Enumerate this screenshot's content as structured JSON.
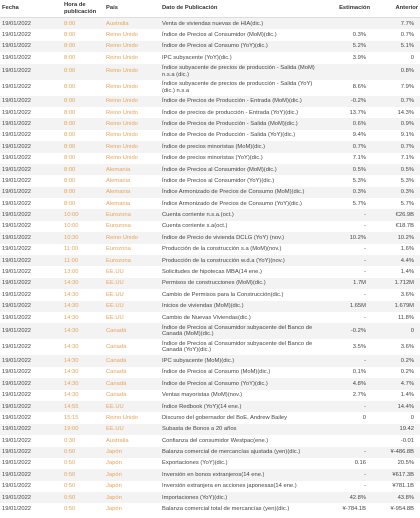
{
  "table": {
    "columns": [
      "Fecha",
      "Hora de publicación",
      "País",
      "Dato de Publicación",
      "Estimación",
      "Anterior"
    ],
    "rows": [
      [
        "19/01/2022",
        "8:00",
        "Australia",
        "Venta de viviendas nuevas de HIA(dic.)",
        null,
        "7.7%"
      ],
      [
        "19/01/2022",
        "8:00",
        "Reino Unido",
        "Índice de Precios al Consumidor (MoM)(dic.)",
        "0.3%",
        "0.7%"
      ],
      [
        "19/01/2022",
        "8:00",
        "Reino Unido",
        "Índice de Precios al Consumo (YoY)(dic.)",
        "5.2%",
        "5.1%"
      ],
      [
        "19/01/2022",
        "8:00",
        "Reino Unido",
        "IPC subyacente (YoY)(dic.)",
        "3.9%",
        "0"
      ],
      [
        "19/01/2022",
        "8:00",
        "Reino Unido",
        "Índice subyacente de precios de producción - Salida (MoM) n.s.a (dic.)",
        null,
        "0.8%"
      ],
      [
        "19/01/2022",
        "8:00",
        "Reino Unido",
        "Índice subyacente de precios de producción - Salida (YoY) (dic.) n.s.a",
        "8.6%",
        "7.9%"
      ],
      [
        "19/01/2022",
        "8:00",
        "Reino Unido",
        "Índice de Precios de Producción - Entrada (MoM)(dic.)",
        "-0.2%",
        "0.7%"
      ],
      [
        "19/01/2022",
        "8:00",
        "Reino Unido",
        "Índice de precios de producción - Entrada (YoY)(dic.)",
        "13.7%",
        "14.3%"
      ],
      [
        "19/01/2022",
        "8:00",
        "Reino Unido",
        "Índice de Precios de Producción - Salida (MoM)(dic.)",
        "0.6%",
        "0.9%"
      ],
      [
        "19/01/2022",
        "8:00",
        "Reino Unido",
        "Índice de Precios de Producción - Salida (YoY)(dic.)",
        "9.4%",
        "9.1%"
      ],
      [
        "19/01/2022",
        "8:00",
        "Reino Unido",
        "Índice de precios minoristas (MoM)(dic.)",
        "0.7%",
        "0.7%"
      ],
      [
        "19/01/2022",
        "8:00",
        "Reino Unido",
        "Índice de precios minoristas (YoY)(dic.)",
        "7.1%",
        "7.1%"
      ],
      [
        "19/01/2022",
        "8:00",
        "Alemania",
        "Índice de Precios al Consumidor (MoM)(dic.)",
        "0.5%",
        "0.5%"
      ],
      [
        "19/01/2022",
        "8:00",
        "Alemania",
        "Índice de Precios al Consumidor (YoY)(dic.)",
        "5.3%",
        "5.3%"
      ],
      [
        "19/01/2022",
        "8:00",
        "Alemania",
        "Índice Armonizado de Precios de Consumo (MoM)(dic.)",
        "0.3%",
        "0.3%"
      ],
      [
        "19/01/2022",
        "8:00",
        "Alemania",
        "Índice Armonizado de Precios de Consumo (YoY)(dic.)",
        "5.7%",
        "5.7%"
      ],
      [
        "19/01/2022",
        "10:00",
        "Eurozona",
        "Cuenta corriente n.s.a.(oct.)",
        "-",
        "€26.9B"
      ],
      [
        "19/01/2022",
        "10:00",
        "Eurozona",
        "Cuenta corriente s.a(oct.)",
        "-",
        "€18.7B"
      ],
      [
        "19/01/2022",
        "10:30",
        "Reino Unido",
        "Índice de Precio de vivienda DCLG (YoY) (nov.)",
        "10.2%",
        "10.2%"
      ],
      [
        "19/01/2022",
        "11:00",
        "Eurozona",
        "Producción de la construcción s.a (MoM)(nov.)",
        "-",
        "1.6%"
      ],
      [
        "19/01/2022",
        "11:00",
        "Eurozona",
        "Producción de la construcción w.d.a (YoY)(nov.)",
        "-",
        "4.4%"
      ],
      [
        "19/01/2022",
        "13:00",
        "EE.UU",
        "Solicitudes de hipotecas MBA(14 ene.)",
        "-",
        "1.4%"
      ],
      [
        "19/01/2022",
        "14:30",
        "EE.UU",
        "Permisos de construcciones (MoM)(dic.)",
        "1.7M",
        "1.712M"
      ],
      [
        "19/01/2022",
        "14:30",
        "EE.UU",
        "Cambio de Permisos para la Construcción(dic.)",
        "-",
        "3.6%"
      ],
      [
        "19/01/2022",
        "14:30",
        "EE.UU",
        "Inicios de viviendas (MoM)(dic.)",
        "1.65M",
        "1.679M"
      ],
      [
        "19/01/2022",
        "14:30",
        "EE.UU",
        "Cambio de Nuevas Viviendas(dic.)",
        "-",
        "11.8%"
      ],
      [
        "19/01/2022",
        "14:30",
        "Canadá",
        "Índice de Precios al Consumidor subyacente del Banco de Canadá (MoM)(dic.)",
        "-0.2%",
        "0"
      ],
      [
        "19/01/2022",
        "14:30",
        "Canadá",
        "Índice de Precios al Consumidor subyacente del Banco de Canadá (YoY)(dic.)",
        "3.5%",
        "3.6%"
      ],
      [
        "19/01/2022",
        "14:30",
        "Canadá",
        "IPC subyacente (MoM)(dic.)",
        "-",
        "0.2%"
      ],
      [
        "19/01/2022",
        "14:30",
        "Canadá",
        "Índice de Precios al Consumo (MoM)(dic.)",
        "0.1%",
        "0.2%"
      ],
      [
        "19/01/2022",
        "14:30",
        "Canadá",
        "Índice de Precios al Consumo (YoY)(dic.)",
        "4.8%",
        "4.7%"
      ],
      [
        "19/01/2022",
        "14:30",
        "Canadá",
        "Ventas mayoristas (MoM)(nov.)",
        "2.7%",
        "1.4%"
      ],
      [
        "19/01/2022",
        "14:55",
        "EE.UU",
        "Índice Redbook (YoY)(14 ene.)",
        "-",
        "14.4%"
      ],
      [
        "19/01/2022",
        "15:15",
        "Reino Unido",
        "Discurso del gobernador del BoE, Andrew Bailey",
        "0",
        "0"
      ],
      [
        "19/01/2022",
        "19:00",
        "EE.UU",
        "Subasta de Bonos a 20 años",
        null,
        "19.42"
      ],
      [
        "19/01/2022",
        "0:30",
        "Australia",
        "Confianza del consumidor Westpac(ene.)",
        null,
        "-0.01"
      ],
      [
        "19/01/2022",
        "0:50",
        "Japón",
        "Balanza comercial de mercancías ajustada (yen)(dic.)",
        "-",
        "¥-486.8B"
      ],
      [
        "19/01/2022",
        "0:50",
        "Japón",
        "Exportaciones (YoY)(dic.)",
        "0.16",
        "20.5%"
      ],
      [
        "19/01/2022",
        "0:50",
        "Japón",
        "Inversión en bonos extranjeros(14 ene.)",
        "-",
        "¥617.3B"
      ],
      [
        "19/01/2022",
        "0:50",
        "Japón",
        "Inversión extranjera en acciones japonesas(14 ene.)",
        "-",
        "¥781.1B"
      ],
      [
        "19/01/2022",
        "0:50",
        "Japón",
        "Importaciones (YoY)(dic.)",
        "42.8%",
        "43.8%"
      ],
      [
        "19/01/2022",
        "0:50",
        "Japón",
        "Balanza comercial total de mercancías (yen)(dic.)",
        "¥-784.1B",
        "¥-954.8B"
      ]
    ]
  }
}
